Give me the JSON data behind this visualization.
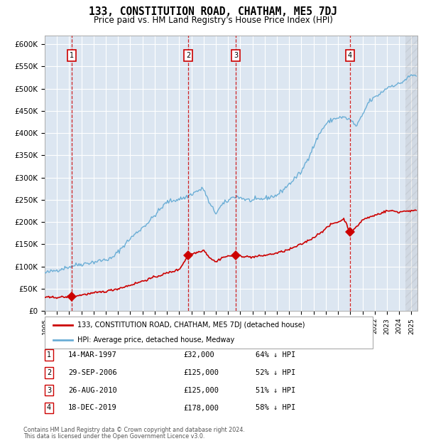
{
  "title": "133, CONSTITUTION ROAD, CHATHAM, ME5 7DJ",
  "subtitle": "Price paid vs. HM Land Registry's House Price Index (HPI)",
  "ylim": [
    0,
    620000
  ],
  "xlim_start": 1995.0,
  "xlim_end": 2025.5,
  "bg_color": "#dce6f1",
  "grid_color": "#ffffff",
  "hpi_color": "#6baed6",
  "price_color": "#cc0000",
  "dashed_color": "#cc0000",
  "box_edge_color": "#cc0000",
  "ytick_labels": [
    "£0",
    "£50K",
    "£100K",
    "£150K",
    "£200K",
    "£250K",
    "£300K",
    "£350K",
    "£400K",
    "£450K",
    "£500K",
    "£550K",
    "£600K"
  ],
  "ytick_values": [
    0,
    50000,
    100000,
    150000,
    200000,
    250000,
    300000,
    350000,
    400000,
    450000,
    500000,
    550000,
    600000
  ],
  "sales": [
    {
      "num": 1,
      "date_dec": 1997.2,
      "price": 32000,
      "label": "14-MAR-1997",
      "amount": "£32,000",
      "pct": "64% ↓ HPI"
    },
    {
      "num": 2,
      "date_dec": 2006.75,
      "price": 125000,
      "label": "29-SEP-2006",
      "amount": "£125,000",
      "pct": "52% ↓ HPI"
    },
    {
      "num": 3,
      "date_dec": 2010.65,
      "price": 125000,
      "label": "26-AUG-2010",
      "amount": "£125,000",
      "pct": "51% ↓ HPI"
    },
    {
      "num": 4,
      "date_dec": 2019.97,
      "price": 178000,
      "label": "18-DEC-2019",
      "amount": "£178,000",
      "pct": "58% ↓ HPI"
    }
  ],
  "legend_line1": "133, CONSTITUTION ROAD, CHATHAM, ME5 7DJ (detached house)",
  "legend_line2": "HPI: Average price, detached house, Medway",
  "footnote1": "Contains HM Land Registry data © Crown copyright and database right 2024.",
  "footnote2": "This data is licensed under the Open Government Licence v3.0.",
  "hatch_start": 2024.5,
  "hatch_end": 2025.5,
  "hpi_waypoints_x": [
    1995.0,
    1996.0,
    1997.5,
    1999.0,
    2000.5,
    2002.0,
    2003.5,
    2005.0,
    2006.5,
    2007.5,
    2008.0,
    2008.5,
    2009.0,
    2009.5,
    2010.0,
    2010.5,
    2011.0,
    2011.5,
    2012.0,
    2013.0,
    2014.0,
    2015.0,
    2016.0,
    2017.0,
    2017.5,
    2018.0,
    2018.5,
    2019.0,
    2019.5,
    2020.0,
    2020.5,
    2021.0,
    2021.5,
    2022.0,
    2022.5,
    2023.0,
    2023.5,
    2024.0,
    2024.5,
    2025.0,
    2025.4
  ],
  "hpi_waypoints_y": [
    85000,
    92000,
    103000,
    110000,
    118000,
    163000,
    200000,
    245000,
    255000,
    270000,
    275000,
    240000,
    220000,
    238000,
    248000,
    258000,
    255000,
    250000,
    248000,
    253000,
    260000,
    285000,
    313000,
    370000,
    400000,
    420000,
    430000,
    435000,
    435000,
    430000,
    415000,
    440000,
    470000,
    480000,
    490000,
    502000,
    508000,
    510000,
    520000,
    530000,
    530000
  ],
  "price_waypoints_x": [
    1995.0,
    1996.5,
    1997.2,
    1997.5,
    1998.0,
    1999.0,
    2000.0,
    2001.0,
    2002.0,
    2003.0,
    2004.0,
    2005.0,
    2006.0,
    2006.75,
    2007.0,
    2007.5,
    2008.0,
    2008.5,
    2009.0,
    2009.5,
    2010.0,
    2010.65,
    2011.0,
    2011.5,
    2012.0,
    2013.0,
    2014.0,
    2015.0,
    2016.0,
    2017.0,
    2017.5,
    2018.0,
    2018.5,
    2019.0,
    2019.5,
    2019.97,
    2020.3,
    2020.7,
    2021.0,
    2021.5,
    2022.0,
    2022.5,
    2023.0,
    2023.5,
    2024.0,
    2024.5,
    2025.0,
    2025.4
  ],
  "price_waypoints_y": [
    30000,
    31000,
    32000,
    33000,
    36000,
    40000,
    44000,
    50000,
    58000,
    67000,
    76000,
    85000,
    93000,
    125000,
    128000,
    132000,
    137000,
    120000,
    110000,
    120000,
    123000,
    125000,
    124000,
    122000,
    121000,
    125000,
    130000,
    138000,
    150000,
    165000,
    175000,
    185000,
    196000,
    200000,
    207000,
    178000,
    182000,
    195000,
    205000,
    210000,
    215000,
    220000,
    225000,
    225000,
    222000,
    225000,
    225000,
    225000
  ]
}
